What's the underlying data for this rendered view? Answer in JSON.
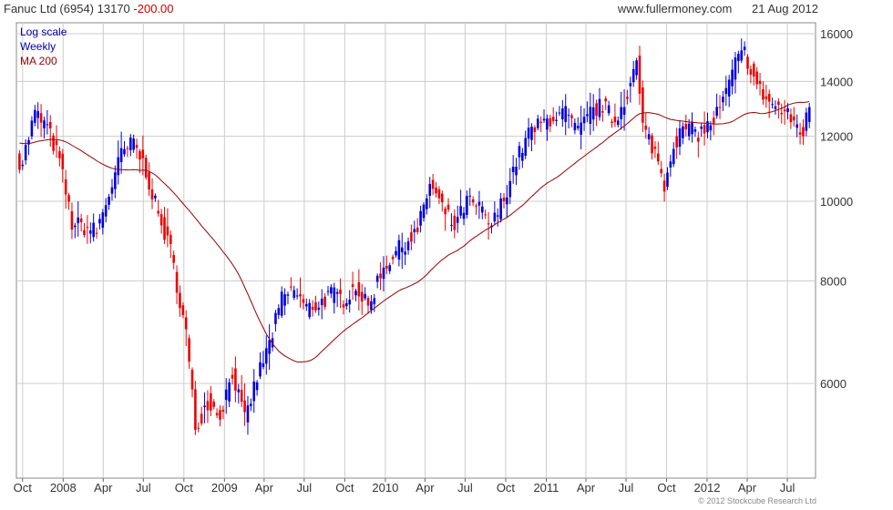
{
  "header": {
    "title": "Fanuc Ltd (6954)",
    "last": "13170",
    "change": "-200.00",
    "site": "www.fullermoney.com",
    "date": "21 Aug 2012"
  },
  "legend": {
    "scale": "Log scale",
    "frequency": "Weekly",
    "ma": "MA 200"
  },
  "copyright": "© 2012 Stockcube Research Ltd",
  "colors": {
    "up": "#0000dd",
    "down": "#ee0000",
    "ma": "#990000",
    "grid": "#cccccc"
  },
  "chart_data": {
    "type": "candlestick",
    "scale": "log",
    "ylim": [
      4600,
      16500
    ],
    "yticks": [
      6000,
      8000,
      10000,
      12000,
      14000,
      16000
    ],
    "xticks": [
      "Oct",
      "2008",
      "Apr",
      "Jul",
      "Oct",
      "2009",
      "Apr",
      "Jul",
      "Oct",
      "2010",
      "Apr",
      "Jul",
      "Oct",
      "2011",
      "Apr",
      "Jul",
      "Oct",
      "2012",
      "Apr",
      "Jul"
    ],
    "close_key": [
      [
        "2007-10-01",
        11200
      ],
      [
        "2007-10-29",
        12800
      ],
      [
        "2007-11-26",
        12300
      ],
      [
        "2007-12-24",
        11200
      ],
      [
        "2008-01-21",
        9400
      ],
      [
        "2008-02-18",
        9300
      ],
      [
        "2008-03-17",
        9200
      ],
      [
        "2008-04-14",
        10200
      ],
      [
        "2008-05-12",
        11400
      ],
      [
        "2008-06-09",
        11800
      ],
      [
        "2008-07-07",
        10900
      ],
      [
        "2008-08-04",
        9600
      ],
      [
        "2008-09-01",
        8700
      ],
      [
        "2008-10-06",
        6900
      ],
      [
        "2008-10-27",
        5300
      ],
      [
        "2008-11-24",
        5700
      ],
      [
        "2008-12-22",
        5500
      ],
      [
        "2009-01-19",
        6200
      ],
      [
        "2009-02-16",
        5400
      ],
      [
        "2009-03-16",
        6100
      ],
      [
        "2009-04-13",
        6700
      ],
      [
        "2009-05-11",
        7600
      ],
      [
        "2009-06-08",
        7800
      ],
      [
        "2009-07-06",
        7400
      ],
      [
        "2009-08-03",
        7500
      ],
      [
        "2009-08-31",
        7700
      ],
      [
        "2009-09-28",
        7600
      ],
      [
        "2009-10-26",
        7900
      ],
      [
        "2009-11-23",
        7400
      ],
      [
        "2009-12-21",
        8200
      ],
      [
        "2010-01-18",
        8600
      ],
      [
        "2010-02-15",
        8900
      ],
      [
        "2010-03-15",
        9200
      ],
      [
        "2010-04-12",
        10500
      ],
      [
        "2010-05-10",
        9800
      ],
      [
        "2010-06-07",
        9300
      ],
      [
        "2010-07-05",
        10000
      ],
      [
        "2010-08-02",
        9800
      ],
      [
        "2010-08-30",
        9300
      ],
      [
        "2010-09-27",
        10100
      ],
      [
        "2010-10-25",
        11200
      ],
      [
        "2010-11-22",
        12100
      ],
      [
        "2010-12-20",
        12400
      ],
      [
        "2011-01-17",
        12700
      ],
      [
        "2011-02-14",
        12800
      ],
      [
        "2011-03-14",
        12100
      ],
      [
        "2011-04-11",
        12800
      ],
      [
        "2011-05-09",
        13100
      ],
      [
        "2011-06-06",
        12500
      ],
      [
        "2011-07-04",
        13600
      ],
      [
        "2011-07-25",
        14700
      ],
      [
        "2011-08-08",
        12300
      ],
      [
        "2011-09-05",
        11500
      ],
      [
        "2011-09-26",
        10500
      ],
      [
        "2011-10-17",
        11800
      ],
      [
        "2011-11-14",
        12300
      ],
      [
        "2011-12-12",
        12100
      ],
      [
        "2012-01-09",
        12400
      ],
      [
        "2012-02-06",
        13200
      ],
      [
        "2012-03-05",
        14700
      ],
      [
        "2012-03-26",
        15200
      ],
      [
        "2012-04-23",
        13800
      ],
      [
        "2012-05-21",
        13200
      ],
      [
        "2012-06-18",
        12900
      ],
      [
        "2012-07-16",
        12500
      ],
      [
        "2012-08-06",
        12100
      ],
      [
        "2012-08-21",
        13170
      ]
    ]
  }
}
